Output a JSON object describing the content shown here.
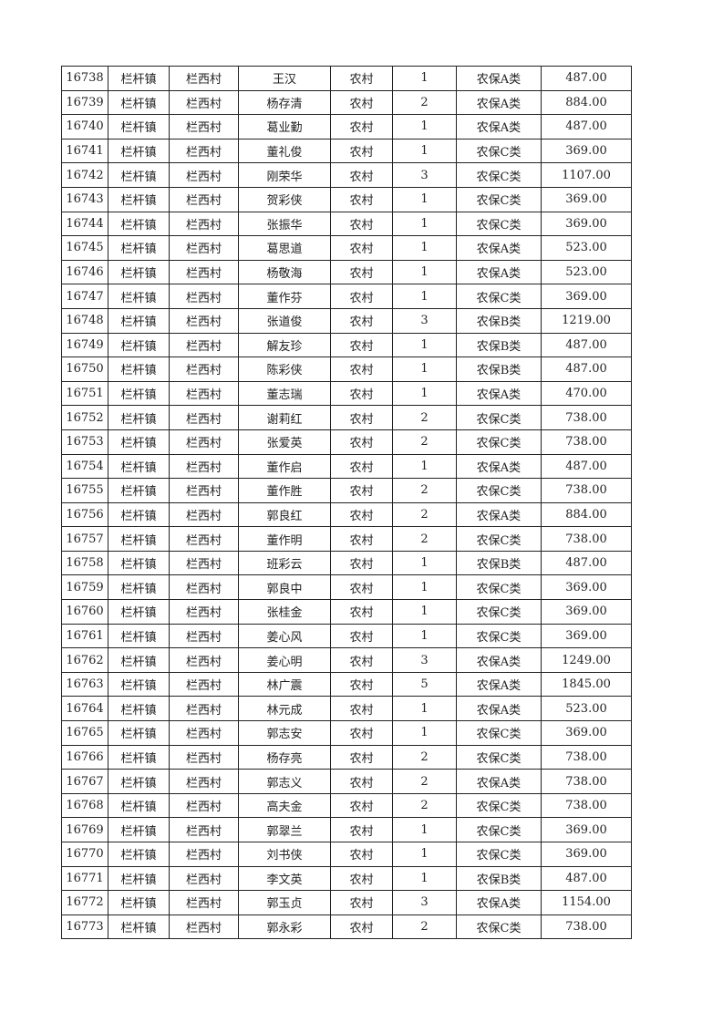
{
  "rows": [
    [
      "16738",
      "栏杆镇",
      "栏西村",
      "王汉",
      "农村",
      "1",
      "农保A类",
      "487.00"
    ],
    [
      "16739",
      "栏杆镇",
      "栏西村",
      "杨存清",
      "农村",
      "2",
      "农保A类",
      "884.00"
    ],
    [
      "16740",
      "栏杆镇",
      "栏西村",
      "葛业勤",
      "农村",
      "1",
      "农保A类",
      "487.00"
    ],
    [
      "16741",
      "栏杆镇",
      "栏西村",
      "董礼俊",
      "农村",
      "1",
      "农保C类",
      "369.00"
    ],
    [
      "16742",
      "栏杆镇",
      "栏西村",
      "刚荣华",
      "农村",
      "3",
      "农保C类",
      "1107.00"
    ],
    [
      "16743",
      "栏杆镇",
      "栏西村",
      "贺彩侠",
      "农村",
      "1",
      "农保C类",
      "369.00"
    ],
    [
      "16744",
      "栏杆镇",
      "栏西村",
      "张振华",
      "农村",
      "1",
      "农保C类",
      "369.00"
    ],
    [
      "16745",
      "栏杆镇",
      "栏西村",
      "葛思道",
      "农村",
      "1",
      "农保A类",
      "523.00"
    ],
    [
      "16746",
      "栏杆镇",
      "栏西村",
      "杨敬海",
      "农村",
      "1",
      "农保A类",
      "523.00"
    ],
    [
      "16747",
      "栏杆镇",
      "栏西村",
      "董作芬",
      "农村",
      "1",
      "农保C类",
      "369.00"
    ],
    [
      "16748",
      "栏杆镇",
      "栏西村",
      "张道俊",
      "农村",
      "3",
      "农保B类",
      "1219.00"
    ],
    [
      "16749",
      "栏杆镇",
      "栏西村",
      "解友珍",
      "农村",
      "1",
      "农保B类",
      "487.00"
    ],
    [
      "16750",
      "栏杆镇",
      "栏西村",
      "陈彩侠",
      "农村",
      "1",
      "农保B类",
      "487.00"
    ],
    [
      "16751",
      "栏杆镇",
      "栏西村",
      "董志瑞",
      "农村",
      "1",
      "农保A类",
      "470.00"
    ],
    [
      "16752",
      "栏杆镇",
      "栏西村",
      "谢莉红",
      "农村",
      "2",
      "农保C类",
      "738.00"
    ],
    [
      "16753",
      "栏杆镇",
      "栏西村",
      "张爱英",
      "农村",
      "2",
      "农保C类",
      "738.00"
    ],
    [
      "16754",
      "栏杆镇",
      "栏西村",
      "董作启",
      "农村",
      "1",
      "农保A类",
      "487.00"
    ],
    [
      "16755",
      "栏杆镇",
      "栏西村",
      "董作胜",
      "农村",
      "2",
      "农保C类",
      "738.00"
    ],
    [
      "16756",
      "栏杆镇",
      "栏西村",
      "郭良红",
      "农村",
      "2",
      "农保A类",
      "884.00"
    ],
    [
      "16757",
      "栏杆镇",
      "栏西村",
      "董作明",
      "农村",
      "2",
      "农保C类",
      "738.00"
    ],
    [
      "16758",
      "栏杆镇",
      "栏西村",
      "班彩云",
      "农村",
      "1",
      "农保B类",
      "487.00"
    ],
    [
      "16759",
      "栏杆镇",
      "栏西村",
      "郭良中",
      "农村",
      "1",
      "农保C类",
      "369.00"
    ],
    [
      "16760",
      "栏杆镇",
      "栏西村",
      "张桂金",
      "农村",
      "1",
      "农保C类",
      "369.00"
    ],
    [
      "16761",
      "栏杆镇",
      "栏西村",
      "姜心风",
      "农村",
      "1",
      "农保C类",
      "369.00"
    ],
    [
      "16762",
      "栏杆镇",
      "栏西村",
      "姜心明",
      "农村",
      "3",
      "农保A类",
      "1249.00"
    ],
    [
      "16763",
      "栏杆镇",
      "栏西村",
      "林广震",
      "农村",
      "5",
      "农保A类",
      "1845.00"
    ],
    [
      "16764",
      "栏杆镇",
      "栏西村",
      "林元成",
      "农村",
      "1",
      "农保A类",
      "523.00"
    ],
    [
      "16765",
      "栏杆镇",
      "栏西村",
      "郭志安",
      "农村",
      "1",
      "农保C类",
      "369.00"
    ],
    [
      "16766",
      "栏杆镇",
      "栏西村",
      "杨存亮",
      "农村",
      "2",
      "农保C类",
      "738.00"
    ],
    [
      "16767",
      "栏杆镇",
      "栏西村",
      "郭志义",
      "农村",
      "2",
      "农保A类",
      "738.00"
    ],
    [
      "16768",
      "栏杆镇",
      "栏西村",
      "高夫金",
      "农村",
      "2",
      "农保C类",
      "738.00"
    ],
    [
      "16769",
      "栏杆镇",
      "栏西村",
      "郭翠兰",
      "农村",
      "1",
      "农保C类",
      "369.00"
    ],
    [
      "16770",
      "栏杆镇",
      "栏西村",
      "刘书侠",
      "农村",
      "1",
      "农保C类",
      "369.00"
    ],
    [
      "16771",
      "栏杆镇",
      "栏西村",
      "李文英",
      "农村",
      "1",
      "农保B类",
      "487.00"
    ],
    [
      "16772",
      "栏杆镇",
      "栏西村",
      "郭玉贞",
      "农村",
      "3",
      "农保A类",
      "1154.00"
    ],
    [
      "16773",
      "栏杆镇",
      "栏西村",
      "郭永彩",
      "农村",
      "2",
      "农保C类",
      "738.00"
    ]
  ]
}
